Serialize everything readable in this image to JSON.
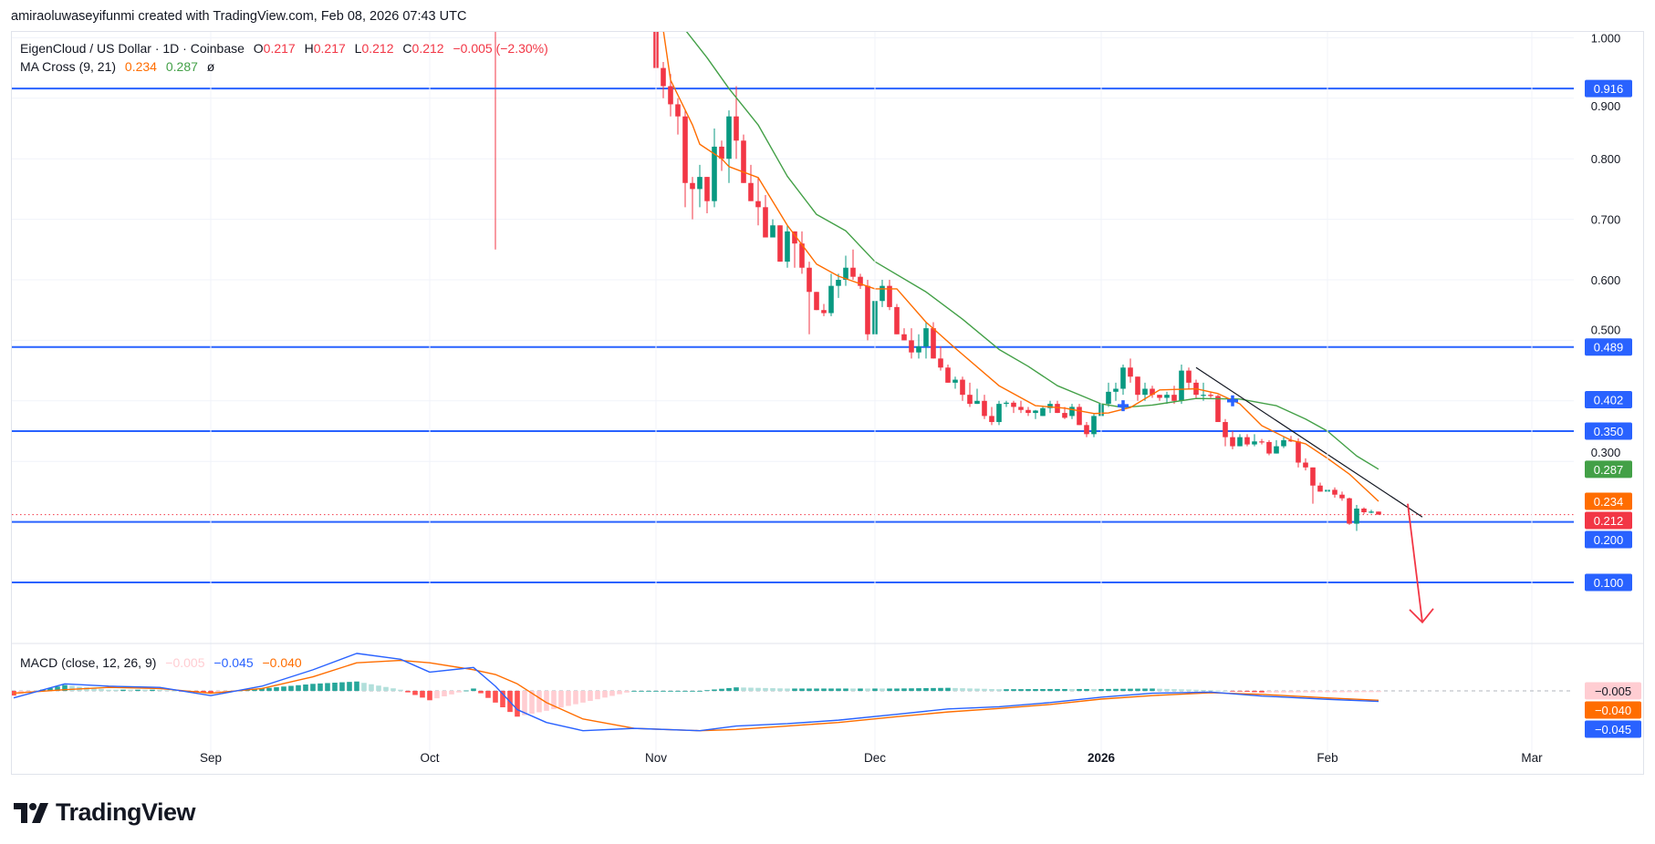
{
  "credit": "amiraoluwaseyifunmi created with TradingView.com, Feb 08, 2026 07:43 UTC",
  "symbol": {
    "name": "EigenCloud / US Dollar · 1D · Coinbase",
    "o_label": "O",
    "o": "0.217",
    "h_label": "H",
    "h": "0.217",
    "l_label": "L",
    "l": "0.212",
    "c_label": "C",
    "c": "0.212",
    "change": "−0.005 (−2.30%)"
  },
  "ma_cross": {
    "label": "MA Cross (9, 21)",
    "fast": "0.234",
    "slow": "0.287",
    "symbol": "ø"
  },
  "macd_legend": {
    "label": "MACD (close, 12, 26, 9)",
    "hist": "−0.005",
    "macd": "−0.045",
    "signal": "−0.040"
  },
  "logo": "TradingView",
  "colors": {
    "up": "#089981",
    "down": "#f23645",
    "level": "#2962ff",
    "ma_fast": "#ff6d00",
    "ma_slow": "#43a047",
    "macd": "#2962ff",
    "signal": "#ff6d00",
    "trendline": "#131722",
    "arrow": "#f23645"
  },
  "chart_data": [
    {
      "type": "candlestick",
      "start_date": "2025-11-01",
      "interval": "1D",
      "ohlc": [
        [
          1.1,
          1.12,
          0.91,
          0.95
        ],
        [
          0.95,
          0.96,
          0.9,
          0.92
        ],
        [
          0.92,
          0.94,
          0.87,
          0.89
        ],
        [
          0.89,
          0.9,
          0.84,
          0.87
        ],
        [
          0.87,
          0.88,
          0.72,
          0.76
        ],
        [
          0.76,
          0.77,
          0.7,
          0.75
        ],
        [
          0.75,
          0.79,
          0.72,
          0.77
        ],
        [
          0.77,
          0.77,
          0.71,
          0.73
        ],
        [
          0.73,
          0.85,
          0.72,
          0.82
        ],
        [
          0.82,
          0.83,
          0.78,
          0.8
        ],
        [
          0.8,
          0.88,
          0.76,
          0.87
        ],
        [
          0.87,
          0.92,
          0.8,
          0.83
        ],
        [
          0.83,
          0.84,
          0.76,
          0.76
        ],
        [
          0.76,
          0.79,
          0.73,
          0.73
        ],
        [
          0.73,
          0.77,
          0.69,
          0.72
        ],
        [
          0.72,
          0.74,
          0.67,
          0.67
        ],
        [
          0.67,
          0.7,
          0.67,
          0.69
        ],
        [
          0.69,
          0.69,
          0.63,
          0.63
        ],
        [
          0.63,
          0.69,
          0.62,
          0.68
        ],
        [
          0.68,
          0.68,
          0.62,
          0.66
        ],
        [
          0.66,
          0.68,
          0.61,
          0.62
        ],
        [
          0.62,
          0.63,
          0.51,
          0.58
        ],
        [
          0.58,
          0.58,
          0.55,
          0.55
        ],
        [
          0.55,
          0.56,
          0.54,
          0.545
        ],
        [
          0.545,
          0.61,
          0.54,
          0.59
        ],
        [
          0.59,
          0.61,
          0.57,
          0.6
        ],
        [
          0.6,
          0.64,
          0.59,
          0.62
        ],
        [
          0.62,
          0.65,
          0.6,
          0.605
        ],
        [
          0.605,
          0.61,
          0.585,
          0.59
        ],
        [
          0.59,
          0.6,
          0.5,
          0.51
        ],
        [
          0.51,
          0.57,
          0.5,
          0.565
        ],
        [
          0.565,
          0.6,
          0.555,
          0.59
        ],
        [
          0.59,
          0.6,
          0.55,
          0.555
        ],
        [
          0.555,
          0.56,
          0.51,
          0.51
        ],
        [
          0.51,
          0.52,
          0.5,
          0.5
        ],
        [
          0.5,
          0.52,
          0.47,
          0.48
        ],
        [
          0.48,
          0.51,
          0.47,
          0.49
        ],
        [
          0.49,
          0.53,
          0.47,
          0.52
        ],
        [
          0.52,
          0.53,
          0.47,
          0.47
        ],
        [
          0.47,
          0.49,
          0.45,
          0.455
        ],
        [
          0.455,
          0.46,
          0.43,
          0.43
        ],
        [
          0.43,
          0.44,
          0.42,
          0.435
        ],
        [
          0.435,
          0.44,
          0.4,
          0.41
        ],
        [
          0.41,
          0.43,
          0.39,
          0.395
        ],
        [
          0.395,
          0.42,
          0.395,
          0.4
        ],
        [
          0.4,
          0.41,
          0.37,
          0.375
        ],
        [
          0.375,
          0.39,
          0.36,
          0.365
        ],
        [
          0.365,
          0.4,
          0.36,
          0.395
        ],
        [
          0.395,
          0.4,
          0.39,
          0.397
        ],
        [
          0.397,
          0.4,
          0.38,
          0.39
        ],
        [
          0.39,
          0.4,
          0.38,
          0.385
        ],
        [
          0.385,
          0.39,
          0.375,
          0.38
        ],
        [
          0.38,
          0.385,
          0.37,
          0.384
        ],
        [
          0.375,
          0.39,
          0.375,
          0.388
        ],
        [
          0.388,
          0.4,
          0.38,
          0.395
        ],
        [
          0.395,
          0.4,
          0.38,
          0.38
        ],
        [
          0.38,
          0.39,
          0.37,
          0.372
        ],
        [
          0.375,
          0.395,
          0.37,
          0.39
        ],
        [
          0.39,
          0.395,
          0.36,
          0.36
        ],
        [
          0.36,
          0.365,
          0.34,
          0.345
        ],
        [
          0.345,
          0.38,
          0.34,
          0.375
        ],
        [
          0.375,
          0.4,
          0.37,
          0.395
        ],
        [
          0.395,
          0.43,
          0.39,
          0.415
        ],
        [
          0.415,
          0.43,
          0.4,
          0.42
        ],
        [
          0.42,
          0.46,
          0.41,
          0.455
        ],
        [
          0.455,
          0.47,
          0.43,
          0.44
        ],
        [
          0.44,
          0.44,
          0.4,
          0.41
        ],
        [
          0.41,
          0.43,
          0.4,
          0.42
        ],
        [
          0.42,
          0.425,
          0.405,
          0.41
        ],
        [
          0.41,
          0.41,
          0.4,
          0.405
        ],
        [
          0.405,
          0.415,
          0.395,
          0.41
        ],
        [
          0.41,
          0.425,
          0.395,
          0.4
        ],
        [
          0.4,
          0.46,
          0.395,
          0.45
        ],
        [
          0.45,
          0.455,
          0.42,
          0.43
        ],
        [
          0.43,
          0.435,
          0.405,
          0.41
        ],
        [
          0.41,
          0.43,
          0.4,
          0.41
        ],
        [
          0.41,
          0.415,
          0.405,
          0.408
        ],
        [
          0.408,
          0.41,
          0.365,
          0.365
        ],
        [
          0.365,
          0.37,
          0.325,
          0.34
        ],
        [
          0.34,
          0.35,
          0.32,
          0.325
        ],
        [
          0.325,
          0.345,
          0.325,
          0.34
        ],
        [
          0.34,
          0.345,
          0.325,
          0.328
        ],
        [
          0.328,
          0.345,
          0.325,
          0.333
        ],
        [
          0.333,
          0.337,
          0.328,
          0.332
        ],
        [
          0.332,
          0.335,
          0.31,
          0.313
        ],
        [
          0.313,
          0.335,
          0.313,
          0.325
        ],
        [
          0.325,
          0.34,
          0.322,
          0.335
        ],
        [
          0.335,
          0.342,
          0.332,
          0.333
        ],
        [
          0.333,
          0.338,
          0.29,
          0.298
        ],
        [
          0.298,
          0.305,
          0.285,
          0.29
        ],
        [
          0.29,
          0.29,
          0.23,
          0.26
        ],
        [
          0.26,
          0.265,
          0.25,
          0.25
        ],
        [
          0.25,
          0.258,
          0.248,
          0.253
        ],
        [
          0.253,
          0.257,
          0.24,
          0.245
        ],
        [
          0.245,
          0.25,
          0.235,
          0.239
        ],
        [
          0.239,
          0.24,
          0.195,
          0.197
        ],
        [
          0.197,
          0.228,
          0.185,
          0.222
        ],
        [
          0.222,
          0.224,
          0.213,
          0.216
        ],
        [
          0.216,
          0.22,
          0.214,
          0.217
        ],
        [
          0.217,
          0.217,
          0.212,
          0.212
        ]
      ],
      "earlier_wick": {
        "date": "2025-10-10",
        "low": 0.65
      },
      "ma_fast": {
        "name": "MA Cross (9, 21)",
        "points": [
          [
            "2025-11-02",
            1.013
          ],
          [
            "2025-11-03",
            0.93
          ],
          [
            "2025-11-06",
            0.856
          ],
          [
            "2025-11-07",
            0.824
          ],
          [
            "2025-11-10",
            0.8
          ],
          [
            "2025-11-11",
            0.787
          ],
          [
            "2025-11-15",
            0.769
          ],
          [
            "2025-11-19",
            0.69
          ],
          [
            "2025-11-23",
            0.626
          ],
          [
            "2025-11-26",
            0.606
          ],
          [
            "2025-12-01",
            0.585
          ],
          [
            "2025-12-04",
            0.585
          ],
          [
            "2025-12-08",
            0.53
          ],
          [
            "2025-12-12",
            0.487
          ],
          [
            "2025-12-18",
            0.425
          ],
          [
            "2025-12-23",
            0.392
          ],
          [
            "2025-12-27",
            0.388
          ],
          [
            "2025-12-31",
            0.379
          ],
          [
            "2026-01-02",
            0.38
          ],
          [
            "2026-01-05",
            0.389
          ],
          [
            "2026-01-09",
            0.418
          ],
          [
            "2026-01-14",
            0.42
          ],
          [
            "2026-01-17",
            0.412
          ],
          [
            "2026-01-20",
            0.395
          ],
          [
            "2026-01-23",
            0.359
          ],
          [
            "2026-01-27",
            0.335
          ],
          [
            "2026-01-29",
            0.329
          ],
          [
            "2026-02-01",
            0.305
          ],
          [
            "2026-02-04",
            0.279
          ],
          [
            "2026-02-08",
            0.234
          ]
        ]
      },
      "ma_slow": {
        "points": [
          [
            "2025-11-05",
            1.013
          ],
          [
            "2025-11-08",
            0.967
          ],
          [
            "2025-11-11",
            0.916
          ],
          [
            "2025-11-15",
            0.856
          ],
          [
            "2025-11-19",
            0.771
          ],
          [
            "2025-11-23",
            0.708
          ],
          [
            "2025-11-27",
            0.681
          ],
          [
            "2025-12-01",
            0.63
          ],
          [
            "2025-12-08",
            0.58
          ],
          [
            "2025-12-13",
            0.535
          ],
          [
            "2025-12-18",
            0.485
          ],
          [
            "2025-12-22",
            0.457
          ],
          [
            "2025-12-26",
            0.425
          ],
          [
            "2025-12-29",
            0.41
          ],
          [
            "2026-01-01",
            0.395
          ],
          [
            "2026-01-04",
            0.389
          ],
          [
            "2026-01-08",
            0.393
          ],
          [
            "2026-01-14",
            0.404
          ],
          [
            "2026-01-20",
            0.403
          ],
          [
            "2026-01-25",
            0.392
          ],
          [
            "2026-01-29",
            0.37
          ],
          [
            "2026-02-01",
            0.35
          ],
          [
            "2026-02-05",
            0.309
          ],
          [
            "2026-02-08",
            0.287
          ]
        ]
      },
      "cross_markers": [
        [
          "2026-01-04",
          0.392
        ],
        [
          "2026-01-19",
          0.4
        ]
      ],
      "levels": [
        0.916,
        0.489,
        0.35,
        0.2,
        0.1
      ],
      "last_price": 0.212,
      "trendline": [
        [
          "2026-01-14",
          0.455
        ],
        [
          "2026-02-14",
          0.208
        ]
      ],
      "arrow": [
        [
          "2026-02-12",
          0.23
        ],
        [
          "2026-02-14",
          0.034
        ]
      ],
      "y_axis": {
        "ticks": [
          "1.000",
          "0.900",
          "0.800",
          "0.700",
          "0.600",
          "0.500",
          "0.300"
        ],
        "ylim": [
          0.0,
          1.0
        ]
      },
      "price_labels": [
        {
          "text": "0.916",
          "value": 0.916,
          "color": "#2962ff"
        },
        {
          "text": "0.489",
          "value": 0.489,
          "color": "#2962ff"
        },
        {
          "text": "0.402",
          "value": 0.402,
          "color": "#2962ff"
        },
        {
          "text": "0.350",
          "value": 0.35,
          "color": "#2962ff"
        },
        {
          "text": "0.287",
          "value": 0.287,
          "color": "#43a047"
        },
        {
          "text": "0.234",
          "value": 0.234,
          "color": "#ff6d00"
        },
        {
          "text": "0.212",
          "value": 0.212,
          "color": "#f23645"
        },
        {
          "text": "0.200",
          "value": 0.2,
          "color": "#2962ff"
        },
        {
          "text": "0.100",
          "value": 0.1,
          "color": "#2962ff"
        }
      ],
      "x_axis": {
        "ticks": [
          [
            "2025-09-01",
            "Sep"
          ],
          [
            "2025-10-01",
            "Oct"
          ],
          [
            "2025-11-01",
            "Nov"
          ],
          [
            "2025-12-01",
            "Dec"
          ],
          [
            "2026-01-01",
            "2026"
          ],
          [
            "2026-02-01",
            "Feb"
          ],
          [
            "2026-03-01",
            "Mar"
          ]
        ]
      }
    },
    {
      "type": "line",
      "name": "MACD (close, 12, 26, 9)",
      "points": [
        [
          "2025-08-05",
          -0.03,
          -0.01
        ],
        [
          "2025-08-12",
          0.03,
          0.005
        ],
        [
          "2025-08-18",
          0.02,
          0.015
        ],
        [
          "2025-08-25",
          0.015,
          0.01
        ],
        [
          "2025-09-01",
          -0.02,
          -0.01
        ],
        [
          "2025-09-08",
          0.02,
          0.01
        ],
        [
          "2025-09-15",
          0.09,
          0.06
        ],
        [
          "2025-09-21",
          0.16,
          0.12
        ],
        [
          "2025-09-27",
          0.135,
          0.13
        ],
        [
          "2025-10-01",
          0.08,
          0.12
        ],
        [
          "2025-10-07",
          0.1,
          0.09
        ],
        [
          "2025-10-10",
          0.02,
          0.07
        ],
        [
          "2025-10-13",
          -0.08,
          0.03
        ],
        [
          "2025-10-17",
          -0.135,
          -0.05
        ],
        [
          "2025-10-22",
          -0.17,
          -0.12
        ],
        [
          "2025-10-29",
          -0.16,
          -0.16
        ],
        [
          "2025-11-07",
          -0.17,
          -0.17
        ],
        [
          "2025-11-12",
          -0.15,
          -0.165
        ],
        [
          "2025-11-19",
          -0.14,
          -0.15
        ],
        [
          "2025-11-26",
          -0.125,
          -0.135
        ],
        [
          "2025-12-04",
          -0.1,
          -0.11
        ],
        [
          "2025-12-11",
          -0.077,
          -0.09
        ],
        [
          "2025-12-18",
          -0.068,
          -0.075
        ],
        [
          "2025-12-25",
          -0.05,
          -0.058
        ],
        [
          "2026-01-01",
          -0.027,
          -0.035
        ],
        [
          "2026-01-08",
          -0.01,
          -0.02
        ],
        [
          "2026-01-16",
          -0.005,
          -0.008
        ],
        [
          "2026-01-23",
          -0.022,
          -0.015
        ],
        [
          "2026-02-01",
          -0.036,
          -0.03
        ],
        [
          "2026-02-08",
          -0.045,
          -0.04
        ]
      ],
      "price_labels": [
        {
          "text": "−0.005",
          "value": -0.005,
          "color": "#ffcdd2",
          "textColor": "#131722"
        },
        {
          "text": "−0.040",
          "value": -0.04,
          "color": "#ff6d00"
        },
        {
          "text": "−0.045",
          "value": -0.045,
          "color": "#2962ff"
        }
      ]
    }
  ]
}
